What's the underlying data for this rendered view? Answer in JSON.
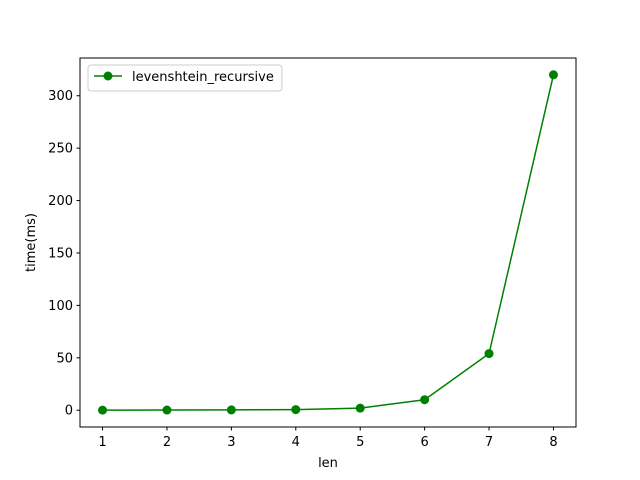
{
  "chart_data": {
    "type": "line",
    "title": "",
    "xlabel": "len",
    "ylabel": "time(ms)",
    "x": [
      1,
      2,
      3,
      4,
      5,
      6,
      7,
      8
    ],
    "xlim": [
      0.65,
      8.35
    ],
    "ylim": [
      -16,
      336
    ],
    "xticks": [
      1,
      2,
      3,
      4,
      5,
      6,
      7,
      8
    ],
    "yticks": [
      0,
      50,
      100,
      150,
      200,
      250,
      300
    ],
    "grid": false,
    "legend_position": "top-left",
    "series": [
      {
        "name": "levenshtein_recursive",
        "color": "#008000",
        "marker": "circle",
        "values": [
          0.1,
          0.2,
          0.3,
          0.6,
          2,
          10,
          54,
          320
        ]
      }
    ]
  }
}
